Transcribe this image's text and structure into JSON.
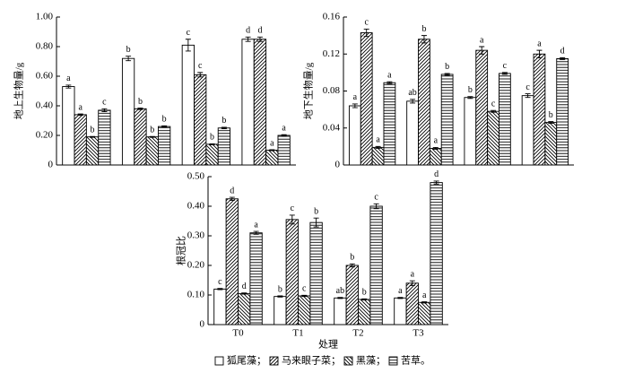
{
  "chart_data": [
    {
      "type": "bar",
      "y_label": "地上生物量/g",
      "categories": [
        null,
        null,
        null,
        null
      ],
      "ylim": [
        0,
        1
      ],
      "yticks": [
        0,
        {
          "value": 0.2,
          "label": "0.20"
        },
        {
          "value": 0.4,
          "label": "0.40"
        },
        {
          "value": 0.6,
          "label": "0.60"
        },
        {
          "value": 0.8,
          "label": "0.80"
        },
        {
          "value": 1,
          "label": "1.00"
        }
      ],
      "series": [
        {
          "hatch": "none",
          "color": "#000000",
          "values": [
            0.53,
            0.72,
            0.81,
            0.85
          ],
          "errors": [
            0.01,
            0.015,
            0.04,
            0.015
          ],
          "labels": [
            "a",
            "b",
            "c",
            "d"
          ]
        },
        {
          "hatch": "diagonal",
          "color": "#000000",
          "values": [
            0.34,
            0.38,
            0.61,
            0.85
          ],
          "errors": [
            0.005,
            0.005,
            0.015,
            0.015
          ],
          "labels": [
            "a",
            "b",
            "c",
            "d"
          ]
        },
        {
          "hatch": "back-diagonal",
          "color": "#000000",
          "values": [
            0.19,
            0.19,
            0.14,
            0.1
          ],
          "errors": [
            0.003,
            0.003,
            0.003,
            0.003
          ],
          "labels": [
            "b",
            "b",
            "b",
            "a"
          ]
        },
        {
          "hatch": "horizontal",
          "color": "#000000",
          "values": [
            0.37,
            0.26,
            0.25,
            0.2
          ],
          "errors": [
            0.01,
            0.005,
            0.005,
            0.005
          ],
          "labels": [
            "c",
            "b",
            "b",
            "a"
          ]
        }
      ]
    },
    {
      "type": "bar",
      "y_label": "地下生物量/g",
      "categories": [
        null,
        null,
        null,
        null
      ],
      "ylim": [
        0,
        0.16
      ],
      "yticks": [
        0,
        0.04,
        0.08,
        0.12,
        0.16
      ],
      "series": [
        {
          "hatch": "none",
          "color": "#000000",
          "values": [
            0.064,
            0.069,
            0.073,
            0.075
          ],
          "errors": [
            0.002,
            0.002,
            0.001,
            0.002
          ],
          "labels": [
            "a",
            "ab",
            "b",
            "c"
          ]
        },
        {
          "hatch": "diagonal",
          "color": "#000000",
          "values": [
            0.143,
            0.136,
            0.124,
            0.12
          ],
          "errors": [
            0.004,
            0.004,
            0.004,
            0.004
          ],
          "labels": [
            "c",
            "b",
            "a",
            "a"
          ]
        },
        {
          "hatch": "back-diagonal",
          "color": "#000000",
          "values": [
            0.019,
            0.018,
            0.058,
            0.046
          ],
          "errors": [
            0.001,
            0.001,
            0.001,
            0.001
          ],
          "labels": [
            "a",
            "a",
            "c",
            "b"
          ]
        },
        {
          "hatch": "horizontal",
          "color": "#000000",
          "values": [
            0.089,
            0.098,
            0.099,
            0.115
          ],
          "errors": [
            0.001,
            0.001,
            0.001,
            0.001
          ],
          "labels": [
            "a",
            "b",
            "c",
            "d"
          ]
        }
      ]
    },
    {
      "type": "bar",
      "y_label": "根冠比",
      "x_label": "处理",
      "categories": [
        "T0",
        "T1",
        "T2",
        "T3"
      ],
      "ylim": [
        0,
        0.5
      ],
      "yticks": [
        0,
        {
          "value": 0.1,
          "label": "0.10"
        },
        {
          "value": 0.2,
          "label": "0.20"
        },
        {
          "value": 0.3,
          "label": "0.30"
        },
        {
          "value": 0.4,
          "label": "0.40"
        },
        {
          "value": 0.5,
          "label": "0.50"
        }
      ],
      "series": [
        {
          "hatch": "none",
          "color": "#000000",
          "values": [
            0.12,
            0.095,
            0.09,
            0.09
          ],
          "errors": [
            0.002,
            0.002,
            0.002,
            0.002
          ],
          "labels": [
            "c",
            "b",
            "ab",
            "a"
          ]
        },
        {
          "hatch": "diagonal",
          "color": "#000000",
          "values": [
            0.425,
            0.355,
            0.2,
            0.14
          ],
          "errors": [
            0.005,
            0.015,
            0.005,
            0.008
          ],
          "labels": [
            "d",
            "c",
            "b",
            "a"
          ]
        },
        {
          "hatch": "back-diagonal",
          "color": "#000000",
          "values": [
            0.105,
            0.097,
            0.085,
            0.075
          ],
          "errors": [
            0.002,
            0.002,
            0.002,
            0.002
          ],
          "labels": [
            "d",
            "c",
            "b",
            "a"
          ]
        },
        {
          "hatch": "horizontal",
          "color": "#000000",
          "values": [
            0.31,
            0.345,
            0.4,
            0.48
          ],
          "errors": [
            0.005,
            0.015,
            0.008,
            0.005
          ],
          "labels": [
            "a",
            "b",
            "c",
            "d"
          ]
        }
      ]
    }
  ],
  "legend": [
    {
      "label": "狐尾藻；",
      "hatch": "none"
    },
    {
      "label": "马来眼子菜；",
      "hatch": "diagonal"
    },
    {
      "label": "黑藻；",
      "hatch": "back-diagonal"
    },
    {
      "label": "苦草。",
      "hatch": "horizontal"
    }
  ]
}
